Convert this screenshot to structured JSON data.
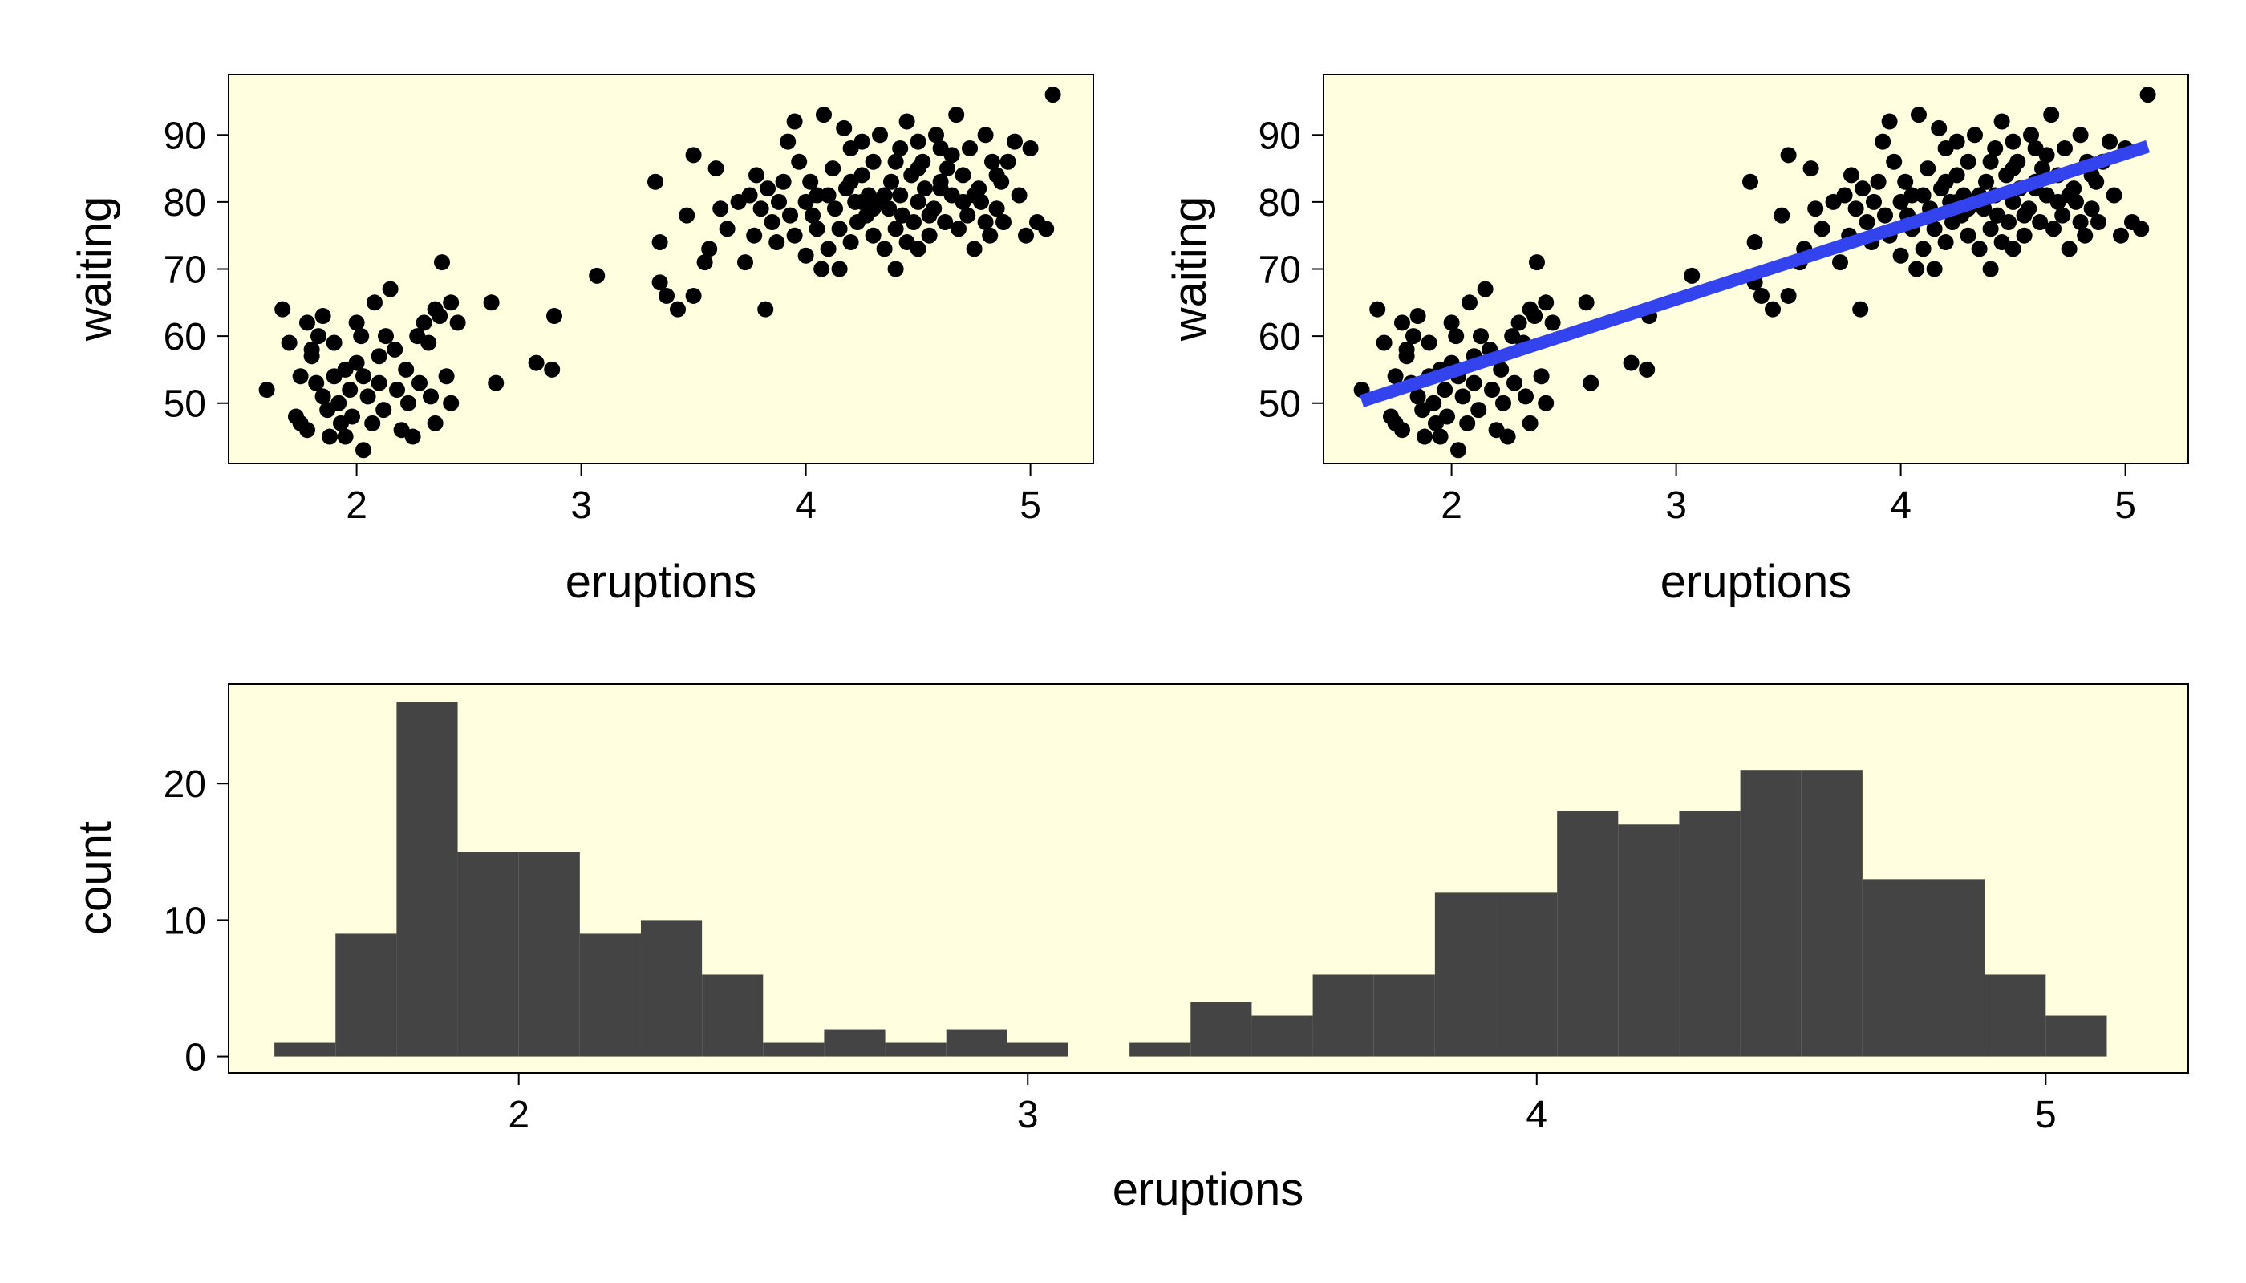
{
  "chart_data": [
    {
      "type": "scatter",
      "xlabel": "eruptions",
      "ylabel": "waiting",
      "xlim": [
        1.43,
        5.28
      ],
      "ylim": [
        41.0,
        99.0
      ],
      "x_ticks": [
        2,
        3,
        4,
        5
      ],
      "y_ticks": [
        50,
        60,
        70,
        80,
        90
      ],
      "panel_fill": "#ffffe0",
      "point_color": "#000000",
      "points": [
        [
          1.6,
          52
        ],
        [
          1.67,
          64
        ],
        [
          1.7,
          59
        ],
        [
          1.73,
          48
        ],
        [
          1.75,
          47
        ],
        [
          1.75,
          54
        ],
        [
          1.78,
          62
        ],
        [
          1.78,
          46
        ],
        [
          1.8,
          57
        ],
        [
          1.8,
          58
        ],
        [
          1.82,
          53
        ],
        [
          1.83,
          60
        ],
        [
          1.85,
          63
        ],
        [
          1.85,
          51
        ],
        [
          1.87,
          49
        ],
        [
          1.88,
          45
        ],
        [
          1.9,
          54
        ],
        [
          1.9,
          59
        ],
        [
          1.92,
          50
        ],
        [
          1.93,
          47
        ],
        [
          1.95,
          55
        ],
        [
          1.95,
          45
        ],
        [
          1.97,
          52
        ],
        [
          1.98,
          48
        ],
        [
          2.0,
          62
        ],
        [
          2.0,
          56
        ],
        [
          2.02,
          60
        ],
        [
          2.03,
          54
        ],
        [
          2.03,
          43
        ],
        [
          2.05,
          51
        ],
        [
          2.07,
          47
        ],
        [
          2.08,
          65
        ],
        [
          2.1,
          57
        ],
        [
          2.1,
          53
        ],
        [
          2.12,
          49
        ],
        [
          2.13,
          60
        ],
        [
          2.15,
          67
        ],
        [
          2.17,
          58
        ],
        [
          2.18,
          52
        ],
        [
          2.2,
          46
        ],
        [
          2.22,
          55
        ],
        [
          2.23,
          50
        ],
        [
          2.25,
          45
        ],
        [
          2.27,
          60
        ],
        [
          2.28,
          53
        ],
        [
          2.3,
          62
        ],
        [
          2.32,
          59
        ],
        [
          2.33,
          51
        ],
        [
          2.35,
          64
        ],
        [
          2.35,
          47
        ],
        [
          2.37,
          63
        ],
        [
          2.38,
          71
        ],
        [
          2.4,
          54
        ],
        [
          2.42,
          65
        ],
        [
          2.42,
          50
        ],
        [
          2.45,
          62
        ],
        [
          2.6,
          65
        ],
        [
          2.62,
          53
        ],
        [
          2.8,
          56
        ],
        [
          2.87,
          55
        ],
        [
          2.88,
          63
        ],
        [
          3.07,
          69
        ],
        [
          3.33,
          83
        ],
        [
          3.35,
          74
        ],
        [
          3.35,
          68
        ],
        [
          3.38,
          66
        ],
        [
          3.43,
          64
        ],
        [
          3.47,
          78
        ],
        [
          3.5,
          87
        ],
        [
          3.5,
          66
        ],
        [
          3.55,
          71
        ],
        [
          3.57,
          73
        ],
        [
          3.6,
          85
        ],
        [
          3.62,
          79
        ],
        [
          3.65,
          76
        ],
        [
          3.7,
          80
        ],
        [
          3.73,
          71
        ],
        [
          3.75,
          81
        ],
        [
          3.77,
          75
        ],
        [
          3.78,
          84
        ],
        [
          3.8,
          79
        ],
        [
          3.82,
          64
        ],
        [
          3.83,
          82
        ],
        [
          3.85,
          77
        ],
        [
          3.87,
          74
        ],
        [
          3.88,
          80
        ],
        [
          3.9,
          83
        ],
        [
          3.92,
          89
        ],
        [
          3.93,
          78
        ],
        [
          3.95,
          75
        ],
        [
          3.97,
          86
        ],
        [
          4.0,
          80
        ],
        [
          4.0,
          72
        ],
        [
          4.02,
          83
        ],
        [
          4.03,
          78
        ],
        [
          4.05,
          76
        ],
        [
          4.07,
          70
        ],
        [
          4.08,
          93
        ],
        [
          4.1,
          81
        ],
        [
          4.1,
          73
        ],
        [
          4.12,
          85
        ],
        [
          4.13,
          79
        ],
        [
          4.15,
          76
        ],
        [
          4.17,
          91
        ],
        [
          4.18,
          82
        ],
        [
          4.2,
          88
        ],
        [
          4.2,
          74
        ],
        [
          4.22,
          80
        ],
        [
          4.23,
          77
        ],
        [
          4.25,
          84
        ],
        [
          4.27,
          78
        ],
        [
          4.28,
          81
        ],
        [
          4.3,
          86
        ],
        [
          4.3,
          75
        ],
        [
          4.32,
          80
        ],
        [
          4.33,
          90
        ],
        [
          4.35,
          73
        ],
        [
          4.37,
          79
        ],
        [
          4.38,
          83
        ],
        [
          4.4,
          76
        ],
        [
          4.42,
          88
        ],
        [
          4.42,
          81
        ],
        [
          4.43,
          78
        ],
        [
          4.45,
          92
        ],
        [
          4.47,
          84
        ],
        [
          4.48,
          77
        ],
        [
          4.5,
          80
        ],
        [
          4.5,
          73
        ],
        [
          4.52,
          86
        ],
        [
          4.53,
          82
        ],
        [
          4.55,
          75
        ],
        [
          4.57,
          79
        ],
        [
          4.58,
          90
        ],
        [
          4.6,
          83
        ],
        [
          4.62,
          77
        ],
        [
          4.63,
          85
        ],
        [
          4.65,
          81
        ],
        [
          4.67,
          93
        ],
        [
          4.68,
          76
        ],
        [
          4.7,
          84
        ],
        [
          4.72,
          78
        ],
        [
          4.73,
          88
        ],
        [
          4.75,
          73
        ],
        [
          4.77,
          82
        ],
        [
          4.78,
          80
        ],
        [
          4.8,
          90
        ],
        [
          4.82,
          75
        ],
        [
          4.83,
          86
        ],
        [
          4.85,
          79
        ],
        [
          4.87,
          83
        ],
        [
          4.88,
          77
        ],
        [
          4.9,
          86
        ],
        [
          4.93,
          89
        ],
        [
          4.95,
          81
        ],
        [
          4.98,
          75
        ],
        [
          5.0,
          88
        ],
        [
          5.03,
          77
        ],
        [
          5.07,
          76
        ],
        [
          5.1,
          96
        ],
        [
          4.4,
          70
        ],
        [
          4.15,
          70
        ],
        [
          3.95,
          92
        ],
        [
          4.25,
          89
        ],
        [
          4.6,
          88
        ],
        [
          4.5,
          85
        ],
        [
          4.35,
          81
        ],
        [
          4.55,
          78
        ],
        [
          4.45,
          74
        ],
        [
          4.7,
          80
        ],
        [
          4.6,
          82
        ],
        [
          4.3,
          79
        ],
        [
          4.2,
          83
        ],
        [
          4.05,
          81
        ],
        [
          4.65,
          87
        ],
        [
          4.75,
          81
        ],
        [
          4.85,
          84
        ],
        [
          4.8,
          77
        ],
        [
          4.5,
          89
        ],
        [
          4.4,
          86
        ],
        [
          4.25,
          80
        ]
      ]
    },
    {
      "type": "scatter",
      "xlabel": "eruptions",
      "ylabel": "waiting",
      "xlim": [
        1.43,
        5.28
      ],
      "ylim": [
        41.0,
        99.0
      ],
      "x_ticks": [
        2,
        3,
        4,
        5
      ],
      "y_ticks": [
        50,
        60,
        70,
        80,
        90
      ],
      "panel_fill": "#ffffe0",
      "point_color": "#000000",
      "points_same_as_panel": 0,
      "regression_line": {
        "x": [
          1.6,
          5.1
        ],
        "y": [
          50.3,
          88.3
        ],
        "color": "#3344ee"
      }
    },
    {
      "type": "bar",
      "xlabel": "eruptions",
      "ylabel": "count",
      "xlim": [
        1.43,
        5.28
      ],
      "ylim": [
        -1.2,
        27.3
      ],
      "x_ticks": [
        2,
        3,
        4,
        5
      ],
      "y_ticks": [
        0,
        10,
        20
      ],
      "panel_fill": "#ffffe0",
      "bar_color": "#444444",
      "bin_width": 0.12,
      "bins": [
        [
          1.52,
          1
        ],
        [
          1.64,
          9
        ],
        [
          1.76,
          26
        ],
        [
          1.88,
          15
        ],
        [
          2.0,
          15
        ],
        [
          2.12,
          9
        ],
        [
          2.24,
          10
        ],
        [
          2.36,
          6
        ],
        [
          2.48,
          1
        ],
        [
          2.6,
          2
        ],
        [
          2.72,
          1
        ],
        [
          2.84,
          2
        ],
        [
          2.96,
          1
        ],
        [
          3.2,
          1
        ],
        [
          3.32,
          4
        ],
        [
          3.44,
          3
        ],
        [
          3.56,
          6
        ],
        [
          3.68,
          6
        ],
        [
          3.8,
          12
        ],
        [
          3.92,
          12
        ],
        [
          4.04,
          18
        ],
        [
          4.16,
          17
        ],
        [
          4.28,
          18
        ],
        [
          4.4,
          21
        ],
        [
          4.52,
          21
        ],
        [
          4.64,
          13
        ],
        [
          4.76,
          13
        ],
        [
          4.88,
          6
        ],
        [
          5.0,
          3
        ]
      ]
    }
  ]
}
